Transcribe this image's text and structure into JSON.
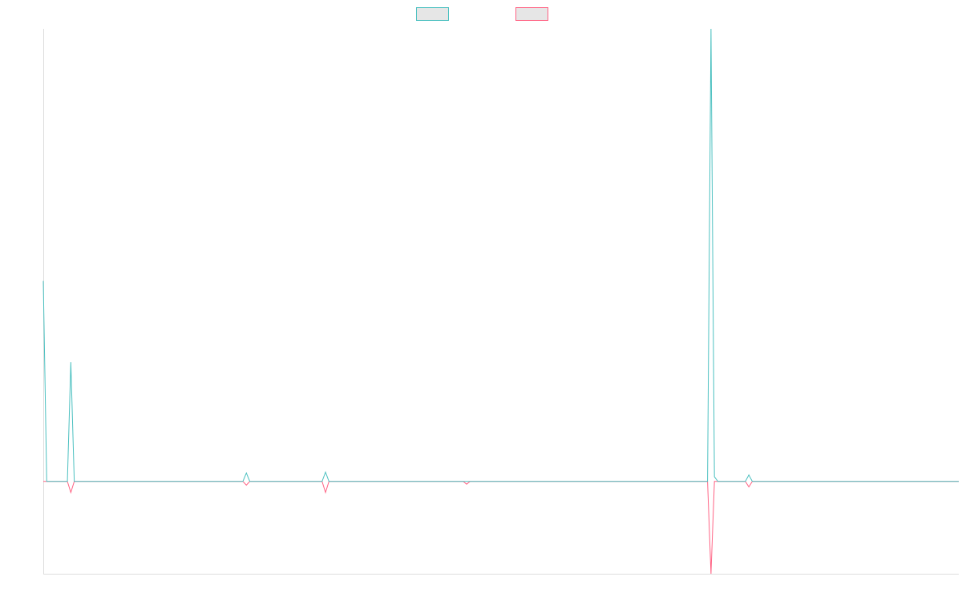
{
  "chart_data": {
    "type": "line",
    "title": "",
    "xlabel": "",
    "ylabel": "",
    "grid": false,
    "legend_position": "top-center",
    "x": [
      0,
      1,
      2,
      3,
      4,
      5,
      6,
      7,
      8,
      9,
      10,
      11,
      12,
      13,
      14,
      15,
      16,
      17,
      18,
      19,
      20,
      21,
      22,
      23,
      24,
      25,
      26,
      27,
      28,
      29,
      30,
      31,
      32,
      33,
      34,
      35,
      36,
      37,
      38,
      39,
      40,
      41,
      42,
      43,
      44,
      45,
      46,
      47,
      48,
      49,
      50,
      51,
      52,
      53,
      54,
      55,
      56,
      57,
      58,
      59,
      60,
      61,
      62,
      63,
      64,
      65,
      66,
      67,
      68,
      69,
      70,
      71,
      72,
      73,
      74,
      75,
      76,
      77,
      78,
      79,
      80,
      81,
      82,
      83,
      84,
      85,
      86,
      87,
      88,
      89,
      90,
      91,
      92,
      93,
      94,
      95,
      96,
      97,
      98,
      99,
      100,
      101,
      102,
      103,
      104,
      105,
      106,
      107,
      108,
      109,
      110,
      111,
      112,
      113,
      114,
      115,
      116,
      117,
      118,
      119,
      120,
      121,
      122,
      123,
      124,
      125,
      126,
      127,
      128,
      129,
      130,
      131,
      132,
      133,
      134,
      135,
      136,
      137,
      138,
      139,
      140,
      141,
      142,
      143,
      144,
      145,
      146,
      147,
      148,
      149,
      150,
      151,
      152,
      153,
      154,
      155,
      156,
      157,
      158,
      159,
      160,
      161,
      162,
      163,
      164,
      165,
      166,
      167,
      168,
      169,
      170,
      171,
      172,
      173,
      174,
      175,
      176,
      177,
      178,
      179,
      180,
      181,
      182,
      183,
      184,
      185,
      186,
      187,
      188,
      189,
      190,
      191,
      192,
      193,
      194,
      195,
      196,
      197,
      198,
      199,
      200,
      201,
      202,
      203,
      204,
      205,
      206,
      207,
      208,
      209,
      210,
      211,
      212,
      213,
      214,
      215,
      216,
      217,
      218,
      219,
      220,
      221,
      222,
      223,
      224,
      225,
      226,
      227,
      228,
      229,
      230,
      231,
      232,
      233,
      234,
      235,
      236,
      237,
      238,
      239,
      240,
      241,
      242,
      243,
      244,
      245,
      246,
      247,
      248,
      249,
      250,
      251,
      252,
      253,
      254,
      255,
      256,
      257,
      258,
      259,
      260,
      261,
      262,
      263,
      264,
      265,
      266
    ],
    "xlim": [
      0,
      266
    ],
    "ylim": [
      -100,
      490
    ],
    "series": [
      {
        "name": "",
        "color": "#4bc0c0",
        "fill": "#e6e6e6",
        "points": [
          [
            0,
            217
          ],
          [
            1,
            0
          ],
          [
            7,
            0
          ],
          [
            8,
            129
          ],
          [
            9,
            0
          ],
          [
            58,
            0
          ],
          [
            59,
            9
          ],
          [
            60,
            0
          ],
          [
            81,
            0
          ],
          [
            82,
            10
          ],
          [
            83,
            0
          ],
          [
            122,
            0
          ],
          [
            123,
            0
          ],
          [
            124,
            0
          ],
          [
            193,
            0
          ],
          [
            194,
            490
          ],
          [
            195,
            5
          ],
          [
            196,
            0
          ],
          [
            204,
            0
          ],
          [
            205,
            7
          ],
          [
            206,
            0
          ],
          [
            266,
            0
          ]
        ]
      },
      {
        "name": "",
        "color": "#ff6384",
        "fill": "#e6e6e6",
        "points": [
          [
            0,
            0
          ],
          [
            7,
            0
          ],
          [
            8,
            -12
          ],
          [
            9,
            0
          ],
          [
            58,
            0
          ],
          [
            59,
            -4
          ],
          [
            60,
            0
          ],
          [
            81,
            0
          ],
          [
            82,
            -12
          ],
          [
            83,
            0
          ],
          [
            122,
            0
          ],
          [
            123,
            -3
          ],
          [
            124,
            0
          ],
          [
            193,
            0
          ],
          [
            194,
            -100
          ],
          [
            195,
            0
          ],
          [
            196,
            0
          ],
          [
            204,
            0
          ],
          [
            205,
            -6
          ],
          [
            206,
            0
          ],
          [
            266,
            0
          ]
        ]
      }
    ]
  }
}
